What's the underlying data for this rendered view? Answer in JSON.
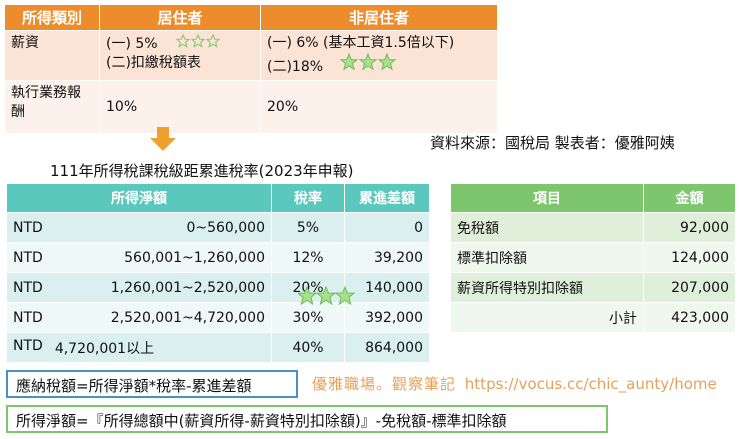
{
  "withholding_table": {
    "headers": [
      "所得類別",
      "居住者",
      "非居住者"
    ],
    "rows": [
      {
        "category": "薪資",
        "resident_lines": [
          "(一) 5%",
          "(二)扣繳稅額表"
        ],
        "nonresident_lines": [
          "(一) 6% (基本工資1.5倍以下)",
          "(二)18%"
        ]
      },
      {
        "category": "執行業務報酬",
        "resident": "10%",
        "nonresident": "20%"
      }
    ]
  },
  "source_note": "資料來源：國稅局  製表者：優雅阿姨",
  "progressive_table": {
    "title": "111年所得稅課稅級距累進稅率(2023年申報)",
    "headers": [
      "所得淨額",
      "稅率",
      "累進差額"
    ],
    "rows": [
      {
        "currency": "NTD",
        "range": "0~560,000",
        "rate": "5%",
        "diff": "0"
      },
      {
        "currency": "NTD",
        "range": "560,001~1,260,000",
        "rate": "12%",
        "diff": "39,200"
      },
      {
        "currency": "NTD",
        "range": "1,260,001~2,520,000",
        "rate": "20%",
        "diff": "140,000"
      },
      {
        "currency": "NTD",
        "range": "2,520,001~4,720,000",
        "rate": "30%",
        "diff": "392,000"
      },
      {
        "currency": "NTD",
        "range": "4,720,001以上",
        "rate": "40%",
        "diff": "864,000"
      }
    ]
  },
  "deduction_table": {
    "headers": [
      "項目",
      "金額"
    ],
    "rows": [
      {
        "item": "免稅額",
        "amount": "92,000"
      },
      {
        "item": "標準扣除額",
        "amount": "124,000"
      },
      {
        "item": "薪資所得特別扣除額",
        "amount": "207,000"
      },
      {
        "item": "小計",
        "amount": "423,000"
      }
    ]
  },
  "formulas": {
    "tax": "應納稅額=所得淨額*稅率-累進差額",
    "net_income": "所得淨額=『所得總額中(薪資所得-薪資特別扣除額)』-免稅額-標準扣除額"
  },
  "watermark": {
    "text": "優雅職場。觀察筆記",
    "url": "https://vocus.cc/chic_aunty/home"
  },
  "colors": {
    "orange_header": "#ec8c2c",
    "teal_header": "#5bc8bd",
    "green_header": "#7dc66d",
    "formula_border_blue": "#4a90c4",
    "star_green": "#7dc66d"
  }
}
